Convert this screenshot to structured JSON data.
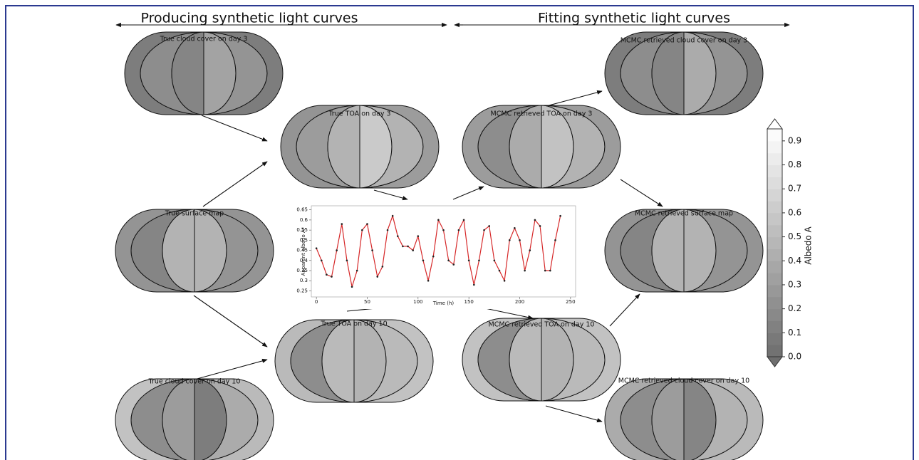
{
  "headers": [
    "Producing synthetic light curves",
    "Fitting synthetic light curves"
  ],
  "maps": [
    {
      "title": "True cloud cover on day 3",
      "albedo": [
        0.1,
        0.2,
        0.15,
        0.35,
        0.25,
        0.1
      ]
    },
    {
      "title": "True TOA on day 3",
      "albedo": [
        0.25,
        0.3,
        0.45,
        0.6,
        0.45,
        0.3
      ]
    },
    {
      "title": "True surface map",
      "albedo": [
        0.25,
        0.15,
        0.45,
        0.45,
        0.25,
        0.25
      ]
    },
    {
      "title": "True TOA on day 10",
      "albedo": [
        0.5,
        0.2,
        0.5,
        0.45,
        0.5,
        0.55
      ]
    },
    {
      "title": "True cloud cover on day 10",
      "albedo": [
        0.55,
        0.2,
        0.3,
        0.1,
        0.4,
        0.5
      ]
    },
    {
      "title": "MCMC retrieved cloud cover on day 3",
      "albedo": [
        0.1,
        0.2,
        0.15,
        0.4,
        0.25,
        0.1
      ]
    },
    {
      "title": "MCMC retrieved TOA on day 3",
      "albedo": [
        0.3,
        0.2,
        0.4,
        0.55,
        0.45,
        0.3
      ]
    },
    {
      "title": "MCMC retrieved surface map",
      "albedo": [
        0.25,
        0.15,
        0.45,
        0.45,
        0.25,
        0.25
      ]
    },
    {
      "title": "MCMC retrieved TOA on day 10",
      "albedo": [
        0.55,
        0.2,
        0.5,
        0.45,
        0.5,
        0.55
      ]
    },
    {
      "title": "MCMC retrieved cloud cover on day 10",
      "albedo": [
        0.4,
        0.2,
        0.3,
        0.15,
        0.45,
        0.5
      ]
    }
  ],
  "colorbar": {
    "label": "Albedo A",
    "lim": [
      0,
      0.95
    ],
    "ticks": [
      {
        "value": 0,
        "label": "0.0"
      },
      0.1,
      0.2,
      0.3,
      0.4,
      0.5,
      0.6,
      0.7,
      0.8,
      0.9
    ]
  },
  "light_curve": {
    "type": "line",
    "x_label": "Time (h)",
    "y_label": "Apparent albedo A*",
    "color": "#d62728",
    "xlim": [
      -5,
      255
    ],
    "ylim": [
      0.22,
      0.67
    ],
    "xticks": [
      0,
      50,
      100,
      150,
      200,
      250
    ],
    "yticks": [
      0.25,
      0.3,
      0.35,
      0.4,
      0.45,
      0.5,
      0.55,
      0.6,
      0.65
    ],
    "x": [
      0,
      5,
      10,
      15,
      20,
      25,
      30,
      35,
      40,
      45,
      50,
      55,
      60,
      65,
      70,
      75,
      80,
      85,
      90,
      95,
      100,
      105,
      110,
      115,
      120,
      125,
      130,
      135,
      140,
      145,
      150,
      155,
      160,
      165,
      170,
      175,
      180,
      185,
      190,
      195,
      200,
      205,
      210,
      215,
      220,
      225,
      230,
      235,
      240
    ],
    "values": [
      0.46,
      0.4,
      0.33,
      0.32,
      0.45,
      0.58,
      0.4,
      0.27,
      0.35,
      0.55,
      0.58,
      0.45,
      0.32,
      0.37,
      0.55,
      0.62,
      0.52,
      0.47,
      0.47,
      0.45,
      0.52,
      0.4,
      0.3,
      0.42,
      0.6,
      0.55,
      0.4,
      0.38,
      0.55,
      0.6,
      0.4,
      0.28,
      0.4,
      0.55,
      0.57,
      0.4,
      0.35,
      0.3,
      0.5,
      0.56,
      0.5,
      0.35,
      0.45,
      0.6,
      0.57,
      0.35,
      0.35,
      0.5,
      0.62
    ]
  }
}
